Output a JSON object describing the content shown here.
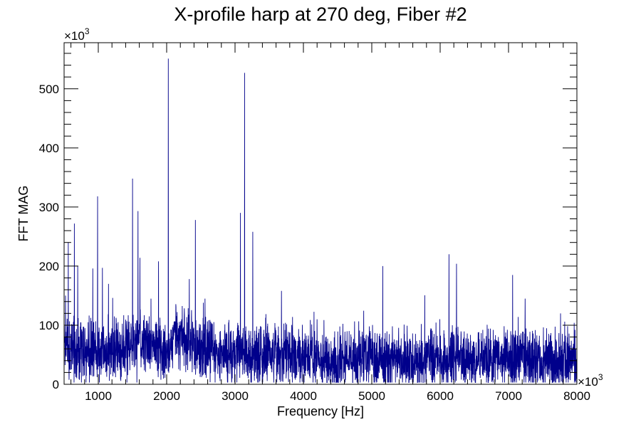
{
  "chart_data": {
    "type": "line",
    "title": "X-profile harp at 270 deg, Fiber #2",
    "xlabel": "Frequency [Hz]",
    "ylabel": "FFT MAG",
    "x_multiplier_label": "×10",
    "x_multiplier_exp": "3",
    "y_multiplier_label": "×10",
    "y_multiplier_exp": "3",
    "xlim": [
      500,
      8000
    ],
    "ylim": [
      0,
      578
    ],
    "x_ticks": [
      1000,
      2000,
      3000,
      4000,
      5000,
      6000,
      7000,
      8000
    ],
    "x_tick_labels": [
      "1000",
      "2000",
      "3000",
      "4000",
      "5000",
      "6000",
      "7000",
      "8000"
    ],
    "y_ticks": [
      0,
      100,
      200,
      300,
      400,
      500
    ],
    "y_tick_labels": [
      "0",
      "100",
      "200",
      "300",
      "400",
      "500"
    ],
    "line_color": "#00008b",
    "grid": false,
    "baseline": [
      [
        500,
        55
      ],
      [
        800,
        55
      ],
      [
        1200,
        50
      ],
      [
        1500,
        68
      ],
      [
        1700,
        72
      ],
      [
        1900,
        62
      ],
      [
        2000,
        40
      ],
      [
        2100,
        82
      ],
      [
        2300,
        80
      ],
      [
        2500,
        58
      ],
      [
        2800,
        48
      ],
      [
        3000,
        52
      ],
      [
        3200,
        55
      ],
      [
        3500,
        50
      ],
      [
        4000,
        48
      ],
      [
        4500,
        40
      ],
      [
        5000,
        45
      ],
      [
        5500,
        40
      ],
      [
        6000,
        42
      ],
      [
        6500,
        42
      ],
      [
        7000,
        45
      ],
      [
        7500,
        42
      ],
      [
        8000,
        42
      ]
    ],
    "peaks": [
      {
        "x": 520,
        "y": 150
      },
      {
        "x": 560,
        "y": 240
      },
      {
        "x": 650,
        "y": 272
      },
      {
        "x": 700,
        "y": 200
      },
      {
        "x": 920,
        "y": 196
      },
      {
        "x": 990,
        "y": 318
      },
      {
        "x": 1060,
        "y": 197
      },
      {
        "x": 1150,
        "y": 170
      },
      {
        "x": 1500,
        "y": 348
      },
      {
        "x": 1580,
        "y": 293
      },
      {
        "x": 1610,
        "y": 214
      },
      {
        "x": 1770,
        "y": 145
      },
      {
        "x": 1880,
        "y": 208
      },
      {
        "x": 2025,
        "y": 551
      },
      {
        "x": 2330,
        "y": 178
      },
      {
        "x": 2420,
        "y": 278
      },
      {
        "x": 2560,
        "y": 145
      },
      {
        "x": 3080,
        "y": 290
      },
      {
        "x": 3140,
        "y": 527
      },
      {
        "x": 3260,
        "y": 258
      },
      {
        "x": 3680,
        "y": 158
      },
      {
        "x": 4200,
        "y": 110
      },
      {
        "x": 5160,
        "y": 200
      },
      {
        "x": 6130,
        "y": 220
      },
      {
        "x": 6240,
        "y": 204
      },
      {
        "x": 7060,
        "y": 185
      },
      {
        "x": 7760,
        "y": 120
      },
      {
        "x": 7960,
        "y": 104
      }
    ],
    "samples": 3200,
    "noise_amplitude": 38,
    "seed": 13
  }
}
